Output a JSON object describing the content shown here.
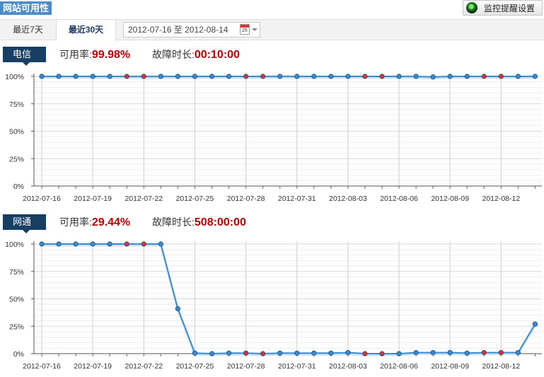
{
  "header": {
    "title": "网站可用性",
    "settings_label": "监控提醒设置",
    "settings_icon": "monitor-status-icon"
  },
  "tabs": [
    {
      "label": "最近7天"
    },
    {
      "label": "最近30天"
    }
  ],
  "daterange": {
    "start": "2012-07-16",
    "sep": "至",
    "end": "2012-08-14",
    "calendar_text": "25"
  },
  "sections": [
    {
      "isp": "电信",
      "avail_label": "可用率:",
      "avail_value": "99.98%",
      "down_label": "故障时长:",
      "down_value": "00:10:00"
    },
    {
      "isp": "网通",
      "avail_label": "可用率:",
      "avail_value": "29.44%",
      "down_label": "故障时长:",
      "down_value": "508:00:00"
    }
  ],
  "chart_data": [
    {
      "type": "line",
      "ylim": [
        0,
        100
      ],
      "yticks": [
        "0%",
        "25%",
        "50%",
        "75%",
        "100%"
      ],
      "xtick_labels": [
        "2012-07-16",
        "2012-07-19",
        "2012-07-22",
        "2012-07-25",
        "2012-07-28",
        "2012-07-31",
        "2012-08-03",
        "2012-08-06",
        "2012-08-09",
        "2012-08-12"
      ],
      "x": [
        "2012-07-16",
        "2012-07-17",
        "2012-07-18",
        "2012-07-19",
        "2012-07-20",
        "2012-07-21",
        "2012-07-22",
        "2012-07-23",
        "2012-07-24",
        "2012-07-25",
        "2012-07-26",
        "2012-07-27",
        "2012-07-28",
        "2012-07-29",
        "2012-07-30",
        "2012-07-31",
        "2012-08-01",
        "2012-08-02",
        "2012-08-03",
        "2012-08-04",
        "2012-08-05",
        "2012-08-06",
        "2012-08-07",
        "2012-08-08",
        "2012-08-09",
        "2012-08-10",
        "2012-08-11",
        "2012-08-12",
        "2012-08-13",
        "2012-08-14"
      ],
      "values": [
        100,
        100,
        100,
        100,
        100,
        100,
        100,
        100,
        100,
        100,
        100,
        100,
        100,
        100,
        100,
        100,
        100,
        100,
        100,
        100,
        100,
        100,
        100,
        99.5,
        100,
        100,
        100,
        100,
        100,
        100
      ],
      "fault": [
        false,
        false,
        false,
        false,
        false,
        true,
        true,
        false,
        false,
        false,
        false,
        false,
        true,
        true,
        false,
        false,
        false,
        false,
        false,
        true,
        true,
        false,
        false,
        false,
        false,
        false,
        true,
        true,
        false,
        false
      ],
      "line_color": "#3a8ad0",
      "normal_point_color": "#3a8ad0",
      "fault_point_color": "#e03030"
    },
    {
      "type": "line",
      "ylim": [
        0,
        100
      ],
      "yticks": [
        "0%",
        "25%",
        "50%",
        "75%",
        "100%"
      ],
      "xtick_labels": [
        "2012-07-16",
        "2012-07-19",
        "2012-07-22",
        "2012-07-25",
        "2012-07-28",
        "2012-07-31",
        "2012-08-03",
        "2012-08-06",
        "2012-08-09",
        "2012-08-12"
      ],
      "x": [
        "2012-07-16",
        "2012-07-17",
        "2012-07-18",
        "2012-07-19",
        "2012-07-20",
        "2012-07-21",
        "2012-07-22",
        "2012-07-23",
        "2012-07-24",
        "2012-07-25",
        "2012-07-26",
        "2012-07-27",
        "2012-07-28",
        "2012-07-29",
        "2012-07-30",
        "2012-07-31",
        "2012-08-01",
        "2012-08-02",
        "2012-08-03",
        "2012-08-04",
        "2012-08-05",
        "2012-08-06",
        "2012-08-07",
        "2012-08-08",
        "2012-08-09",
        "2012-08-10",
        "2012-08-11",
        "2012-08-12",
        "2012-08-13",
        "2012-08-14"
      ],
      "values": [
        100,
        100,
        100,
        100,
        100,
        100,
        100,
        100,
        41,
        0.5,
        0,
        0.5,
        0.5,
        0,
        0.5,
        0.5,
        0.5,
        0.5,
        1,
        0,
        0,
        0,
        1,
        1,
        1,
        0.5,
        1,
        1,
        1,
        27
      ],
      "fault": [
        false,
        false,
        false,
        false,
        false,
        true,
        true,
        false,
        false,
        false,
        false,
        false,
        true,
        true,
        false,
        false,
        false,
        false,
        false,
        true,
        true,
        false,
        false,
        false,
        false,
        false,
        true,
        true,
        false,
        false
      ],
      "line_color": "#3a8ad0",
      "normal_point_color": "#3a8ad0",
      "fault_point_color": "#e03030"
    }
  ]
}
